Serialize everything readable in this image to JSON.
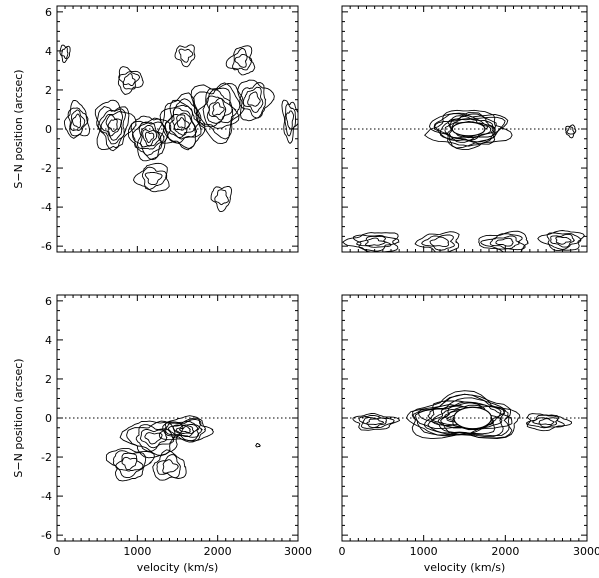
{
  "chart_data": [
    {
      "panel": "top-left",
      "type": "contour",
      "xlim": [
        0,
        3000
      ],
      "ylim": [
        -6.3,
        6.3
      ],
      "xticks": [
        0,
        1000,
        2000,
        3000
      ],
      "yticks": [
        -6,
        -4,
        -2,
        0,
        2,
        4,
        6
      ],
      "x_tick_labels_shown": false,
      "y_tick_labels_shown": true,
      "ylabel": "S−N position (arcsec)",
      "xlabel": "",
      "zero_line": true,
      "emission": [
        {
          "x": 250,
          "y": 0.4,
          "sx": 140,
          "sy": 0.9,
          "levels": 4
        },
        {
          "x": 700,
          "y": 0.2,
          "sx": 220,
          "sy": 1.2,
          "levels": 6
        },
        {
          "x": 1150,
          "y": -0.4,
          "sx": 240,
          "sy": 1.1,
          "levels": 7
        },
        {
          "x": 1550,
          "y": 0.3,
          "sx": 260,
          "sy": 1.3,
          "levels": 8
        },
        {
          "x": 2000,
          "y": 1.0,
          "sx": 300,
          "sy": 1.4,
          "levels": 7
        },
        {
          "x": 2450,
          "y": 1.5,
          "sx": 200,
          "sy": 1.0,
          "levels": 4
        },
        {
          "x": 900,
          "y": 2.5,
          "sx": 150,
          "sy": 0.6,
          "levels": 3
        },
        {
          "x": 2300,
          "y": 3.5,
          "sx": 150,
          "sy": 0.7,
          "levels": 3
        },
        {
          "x": 1600,
          "y": 3.8,
          "sx": 120,
          "sy": 0.5,
          "levels": 2
        },
        {
          "x": 1200,
          "y": -2.5,
          "sx": 200,
          "sy": 0.7,
          "levels": 3
        },
        {
          "x": 2050,
          "y": -3.5,
          "sx": 120,
          "sy": 0.6,
          "levels": 2
        },
        {
          "x": 2900,
          "y": 0.5,
          "sx": 90,
          "sy": 1.0,
          "levels": 3
        },
        {
          "x": 100,
          "y": 3.9,
          "sx": 60,
          "sy": 0.4,
          "levels": 2
        }
      ]
    },
    {
      "panel": "top-right",
      "type": "contour",
      "xlim": [
        0,
        3000
      ],
      "ylim": [
        -6.3,
        6.3
      ],
      "xticks": [
        0,
        1000,
        2000,
        3000
      ],
      "yticks": [
        -6,
        -4,
        -2,
        0,
        2,
        4,
        6
      ],
      "x_tick_labels_shown": false,
      "y_tick_labels_shown": false,
      "zero_line": true,
      "saturated_core": {
        "x": 1550,
        "y": 0.0,
        "sx": 200,
        "sy": 0.35
      },
      "emission": [
        {
          "x": 1550,
          "y": 0.0,
          "sx": 450,
          "sy": 0.9,
          "levels": 14
        },
        {
          "x": 2800,
          "y": -0.1,
          "sx": 60,
          "sy": 0.3,
          "levels": 2
        },
        {
          "x": 400,
          "y": -5.8,
          "sx": 300,
          "sy": 0.5,
          "levels": 4
        },
        {
          "x": 1200,
          "y": -5.8,
          "sx": 250,
          "sy": 0.5,
          "levels": 3
        },
        {
          "x": 2000,
          "y": -5.8,
          "sx": 300,
          "sy": 0.5,
          "levels": 4
        },
        {
          "x": 2700,
          "y": -5.7,
          "sx": 250,
          "sy": 0.5,
          "levels": 4
        }
      ]
    },
    {
      "panel": "bottom-left",
      "type": "contour",
      "xlim": [
        0,
        3000
      ],
      "ylim": [
        -6.3,
        6.3
      ],
      "xticks": [
        0,
        1000,
        2000,
        3000
      ],
      "yticks": [
        -6,
        -4,
        -2,
        0,
        2,
        4,
        6
      ],
      "x_tick_labels_shown": true,
      "y_tick_labels_shown": true,
      "xlabel": "velocity (km/s)",
      "ylabel": "S−N position (arcsec)",
      "zero_line": true,
      "emission": [
        {
          "x": 1600,
          "y": -0.6,
          "sx": 300,
          "sy": 0.6,
          "levels": 7
        },
        {
          "x": 1200,
          "y": -1.0,
          "sx": 350,
          "sy": 0.9,
          "levels": 5
        },
        {
          "x": 900,
          "y": -2.3,
          "sx": 250,
          "sy": 0.8,
          "levels": 4
        },
        {
          "x": 1400,
          "y": -2.5,
          "sx": 200,
          "sy": 0.7,
          "levels": 3
        },
        {
          "x": 2500,
          "y": -1.4,
          "sx": 25,
          "sy": 0.08,
          "levels": 1
        }
      ]
    },
    {
      "panel": "bottom-right",
      "type": "contour",
      "xlim": [
        0,
        3000
      ],
      "ylim": [
        -6.3,
        6.3
      ],
      "xticks": [
        0,
        1000,
        2000,
        3000
      ],
      "yticks": [
        -6,
        -4,
        -2,
        0,
        2,
        4,
        6
      ],
      "x_tick_labels_shown": true,
      "y_tick_labels_shown": false,
      "xlabel": "velocity (km/s)",
      "zero_line": true,
      "saturated_core": {
        "x": 1600,
        "y": 0.0,
        "sx": 230,
        "sy": 0.55
      },
      "emission": [
        {
          "x": 1500,
          "y": 0.0,
          "sx": 650,
          "sy": 1.1,
          "levels": 16
        },
        {
          "x": 400,
          "y": -0.2,
          "sx": 250,
          "sy": 0.4,
          "levels": 4
        },
        {
          "x": 2500,
          "y": -0.2,
          "sx": 250,
          "sy": 0.4,
          "levels": 4
        }
      ]
    }
  ]
}
